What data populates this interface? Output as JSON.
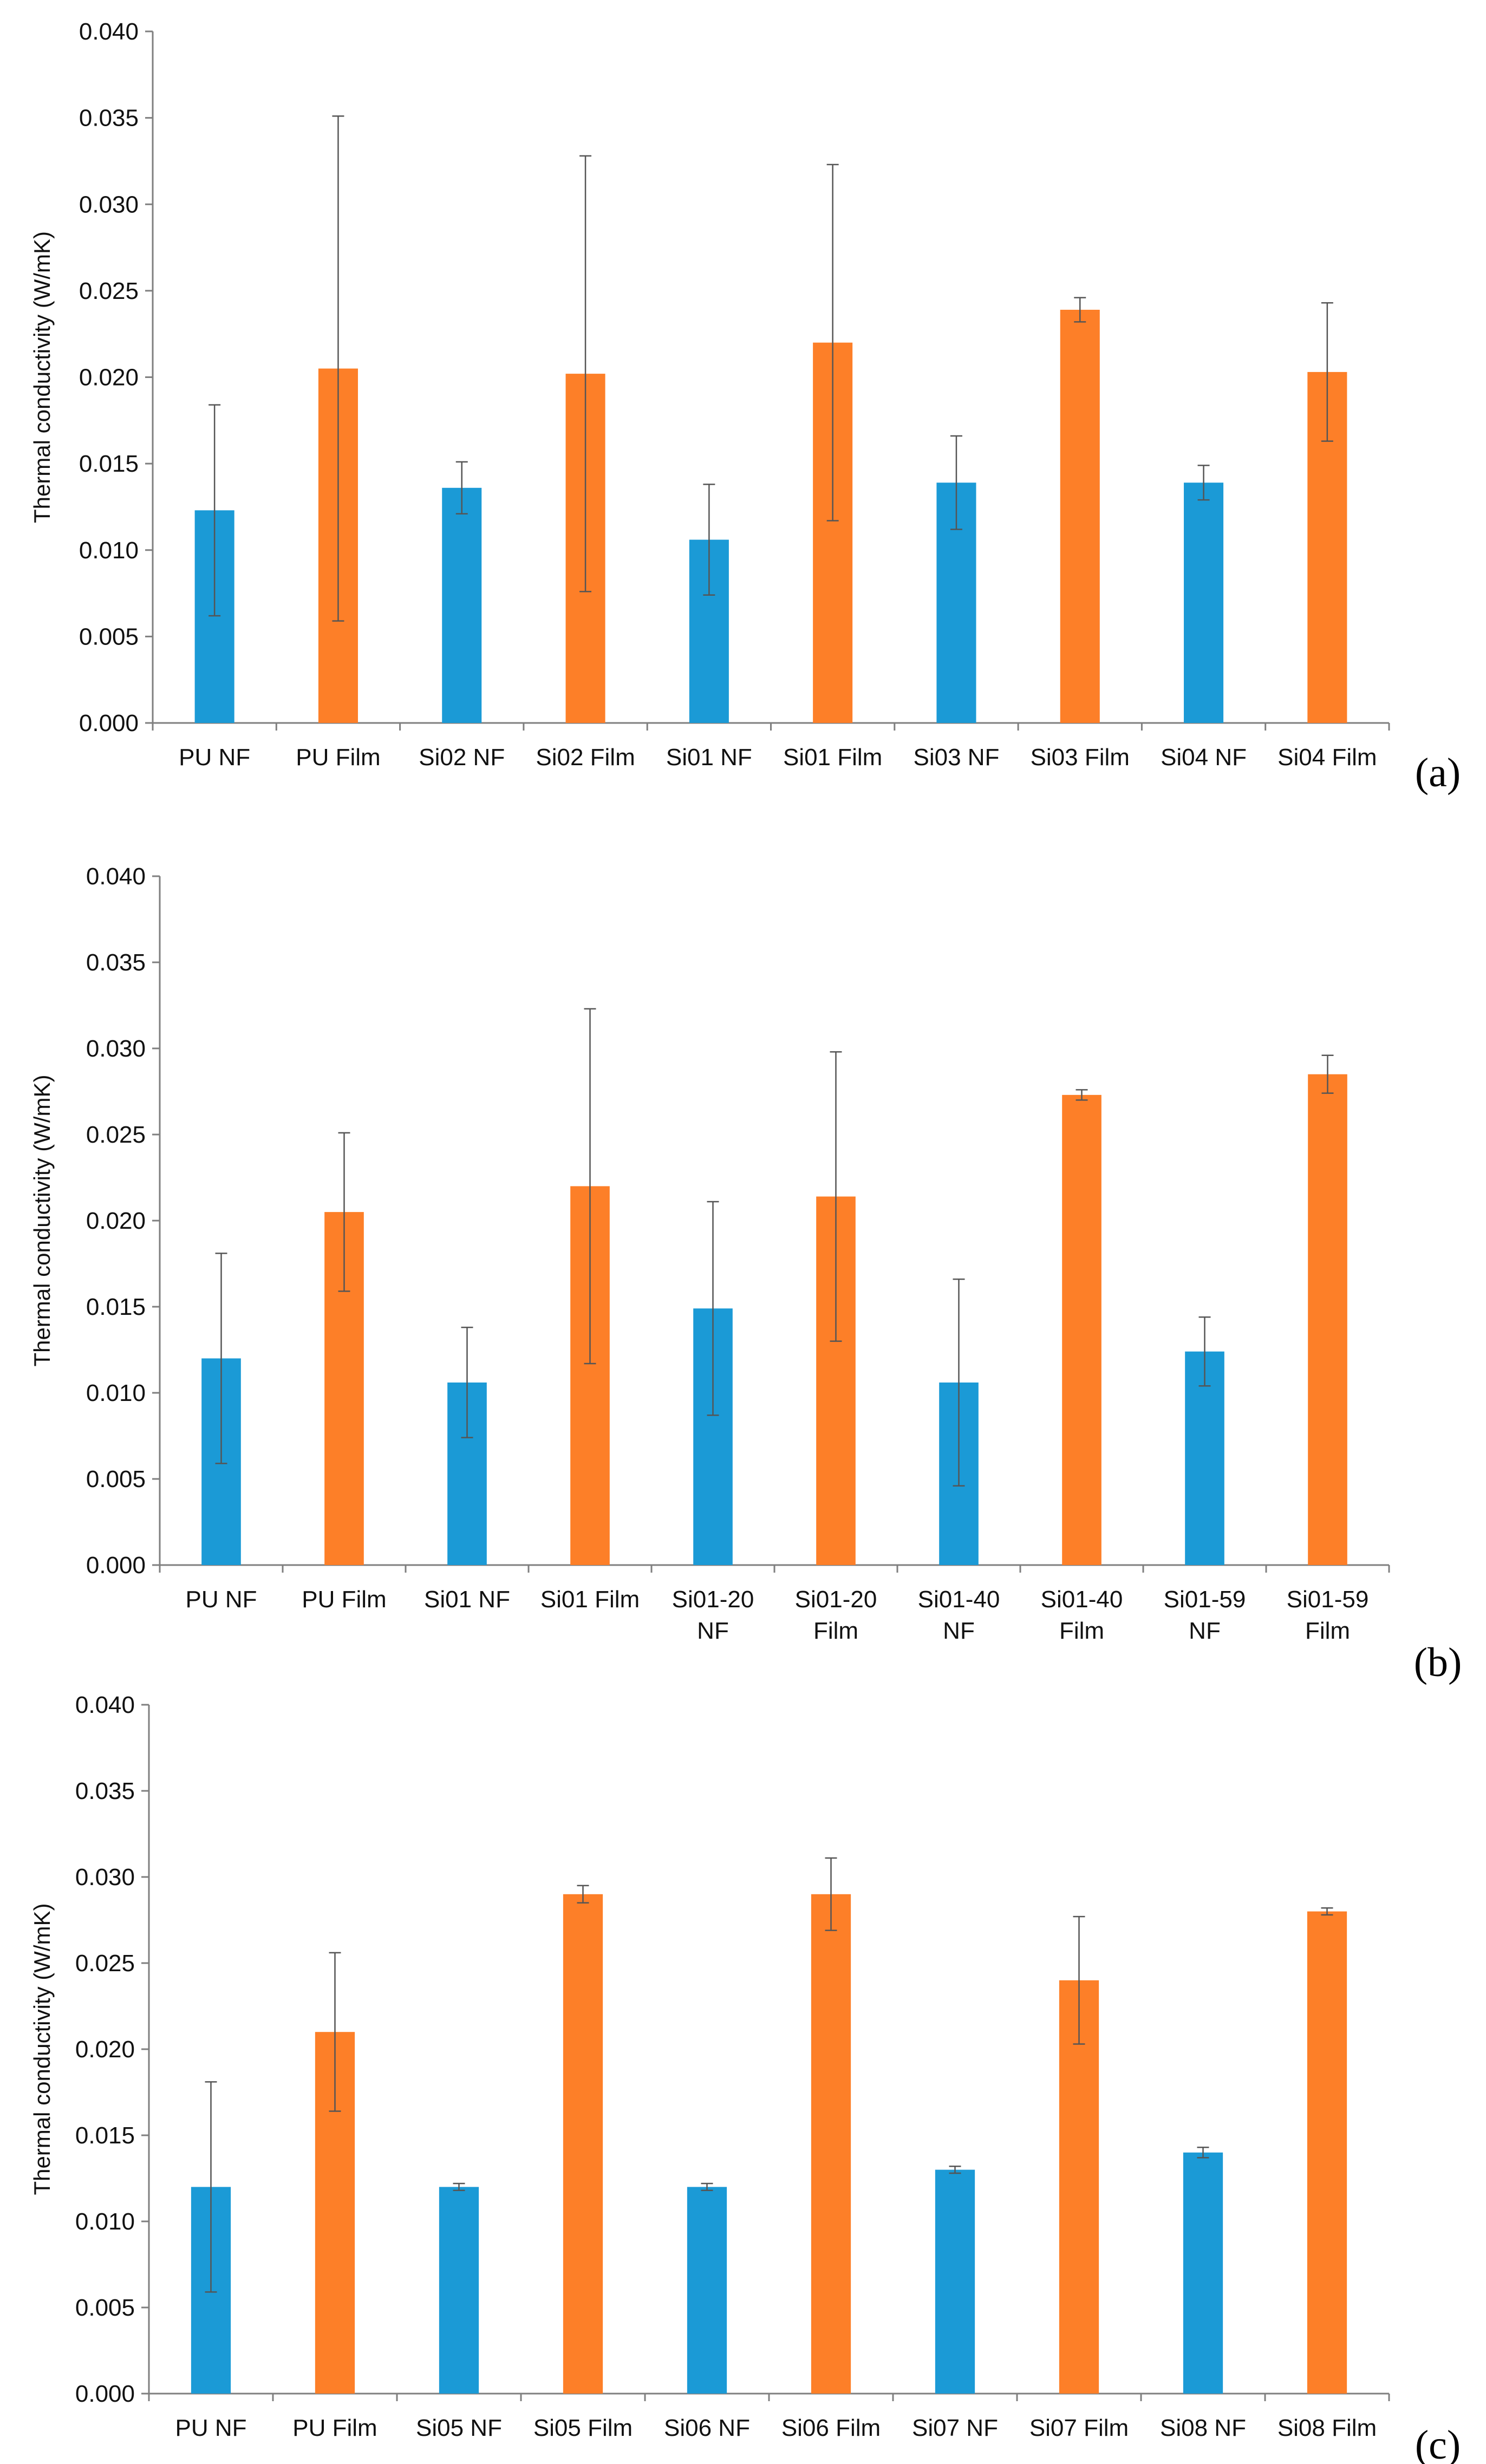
{
  "colors": {
    "nf_bar": "#1b9ad6",
    "film_bar": "#fd7f28",
    "axis": "#7f7f7f",
    "error_bar": "#555555"
  },
  "chart_data": [
    {
      "type": "bar",
      "panel_label": "(a)",
      "ylabel": "Thermal conductivity (W/mK)",
      "ylim": [
        0,
        0.04
      ],
      "yticks": [
        "0.000",
        "0.005",
        "0.010",
        "0.015",
        "0.020",
        "0.025",
        "0.030",
        "0.035",
        "0.040"
      ],
      "grid": false,
      "categories": [
        [
          "PU NF"
        ],
        [
          "PU Film"
        ],
        [
          "Si02 NF"
        ],
        [
          "Si02 Film"
        ],
        [
          "Si01 NF"
        ],
        [
          "Si01 Film"
        ],
        [
          "Si03 NF"
        ],
        [
          "Si03 Film"
        ],
        [
          "Si04 NF"
        ],
        [
          "Si04 Film"
        ]
      ],
      "values": [
        0.0123,
        0.0205,
        0.0136,
        0.0202,
        0.0106,
        0.022,
        0.0139,
        0.0239,
        0.0139,
        0.0203
      ],
      "errors": [
        0.0061,
        0.0146,
        0.0015,
        0.0126,
        0.0032,
        0.0103,
        0.0027,
        0.0007,
        0.001,
        0.004
      ],
      "kinds": [
        "nf",
        "film",
        "nf",
        "film",
        "nf",
        "film",
        "nf",
        "film",
        "nf",
        "film"
      ]
    },
    {
      "type": "bar",
      "panel_label": "(b)",
      "ylabel": "Thermal conductivity (W/mK)",
      "ylim": [
        0,
        0.04
      ],
      "yticks": [
        "0.000",
        "0.005",
        "0.010",
        "0.015",
        "0.020",
        "0.025",
        "0.030",
        "0.035",
        "0.040"
      ],
      "grid": false,
      "categories": [
        [
          "PU NF"
        ],
        [
          "PU Film"
        ],
        [
          "Si01 NF"
        ],
        [
          "Si01 Film"
        ],
        [
          "Si01-20",
          "NF"
        ],
        [
          "Si01-20",
          "Film"
        ],
        [
          "Si01-40",
          "NF"
        ],
        [
          "Si01-40",
          "Film"
        ],
        [
          "Si01-59",
          "NF"
        ],
        [
          "Si01-59",
          "Film"
        ]
      ],
      "values": [
        0.012,
        0.0205,
        0.0106,
        0.022,
        0.0149,
        0.0214,
        0.0106,
        0.0273,
        0.0124,
        0.0285
      ],
      "errors": [
        0.0061,
        0.0046,
        0.0032,
        0.0103,
        0.0062,
        0.0084,
        0.006,
        0.0003,
        0.002,
        0.0011
      ],
      "kinds": [
        "nf",
        "film",
        "nf",
        "film",
        "nf",
        "film",
        "nf",
        "film",
        "nf",
        "film"
      ]
    },
    {
      "type": "bar",
      "panel_label": "(c)",
      "ylabel": "Thermal conductivity (W/mK)",
      "ylim": [
        0,
        0.04
      ],
      "yticks": [
        "0.000",
        "0.005",
        "0.010",
        "0.015",
        "0.020",
        "0.025",
        "0.030",
        "0.035",
        "0.040"
      ],
      "grid": false,
      "categories": [
        [
          "PU NF"
        ],
        [
          "PU Film"
        ],
        [
          "Si05 NF"
        ],
        [
          "Si05 Film"
        ],
        [
          "Si06 NF"
        ],
        [
          "Si06 Film"
        ],
        [
          "Si07 NF"
        ],
        [
          "Si07 Film"
        ],
        [
          "Si08 NF"
        ],
        [
          "Si08 Film"
        ]
      ],
      "values": [
        0.012,
        0.021,
        0.012,
        0.029,
        0.012,
        0.029,
        0.013,
        0.024,
        0.014,
        0.028
      ],
      "errors": [
        0.0061,
        0.0046,
        0.0002,
        0.0005,
        0.0002,
        0.0021,
        0.0002,
        0.0037,
        0.0003,
        0.0002
      ],
      "kinds": [
        "nf",
        "film",
        "nf",
        "film",
        "nf",
        "film",
        "nf",
        "film",
        "nf",
        "film"
      ]
    }
  ]
}
